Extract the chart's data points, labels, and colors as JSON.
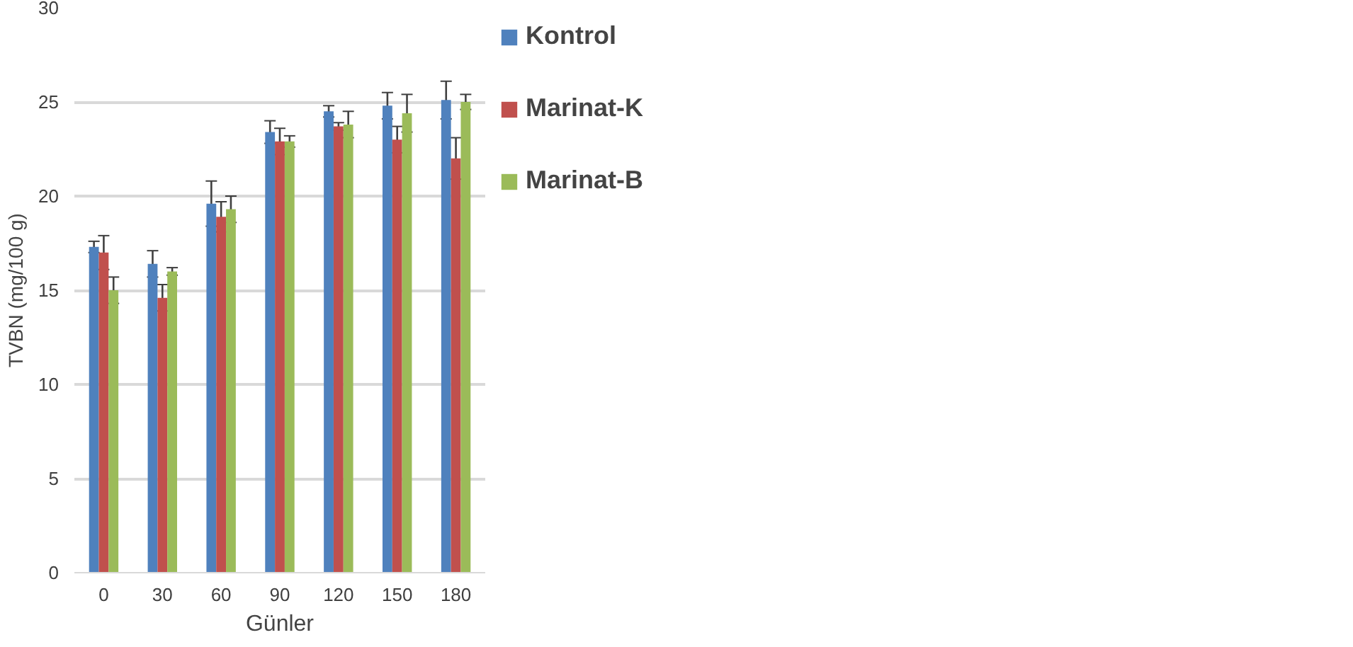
{
  "chart_data": {
    "type": "bar",
    "xlabel": "Günler",
    "ylabel": "TVBN (mg/100 g)",
    "categories": [
      "0",
      "30",
      "60",
      "90",
      "120",
      "150",
      "180"
    ],
    "series": [
      {
        "name": "Kontrol",
        "color": "#4f81bd",
        "values": [
          17.3,
          16.4,
          19.6,
          23.4,
          24.5,
          24.8,
          25.1
        ],
        "errors": [
          0.3,
          0.7,
          1.2,
          0.6,
          0.3,
          0.7,
          1.0
        ]
      },
      {
        "name": "Marinat-K",
        "color": "#c0504d",
        "values": [
          17.0,
          14.6,
          18.9,
          22.9,
          23.7,
          23.0,
          22.0
        ],
        "errors": [
          0.9,
          0.7,
          0.8,
          0.7,
          0.2,
          0.7,
          1.1
        ]
      },
      {
        "name": "Marinat-B",
        "color": "#9bbb59",
        "values": [
          15.0,
          16.0,
          19.3,
          22.9,
          23.8,
          24.4,
          25.0
        ],
        "errors": [
          0.7,
          0.2,
          0.7,
          0.3,
          0.7,
          1.0,
          0.4
        ]
      }
    ],
    "ylim": [
      0,
      30
    ],
    "yticks": [
      0,
      5,
      10,
      15,
      20,
      25,
      30
    ],
    "grid": "y",
    "legend": "right"
  }
}
